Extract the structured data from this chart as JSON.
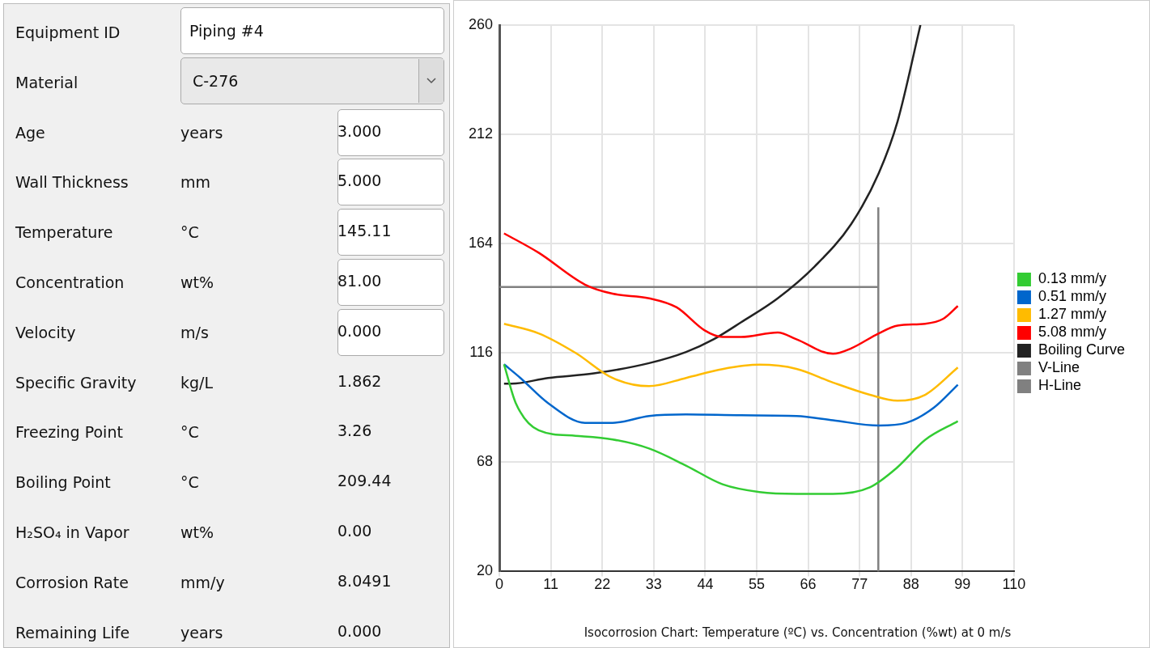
{
  "chart_data": [
    {
      "type": "other",
      "annotations": [
        "Equipment ID",
        "Piping #4",
        "Material",
        "C-276",
        "Age",
        "years",
        "3.000",
        "Wall Thickness",
        "mm",
        "5.000",
        "Temperature",
        "°C",
        "145.11",
        "Concentration",
        "wt%",
        "81.00",
        "Velocity",
        "m/s",
        "0.000",
        "Specific Gravity",
        "kg/L",
        "1.862",
        "Freezing Point",
        "°C",
        "3.26",
        "Boiling Point",
        "°C",
        "209.44",
        "H₂SO₄ in Vapor",
        "wt%",
        "0.00",
        "Corrosion Rate",
        "mm/y",
        "8.0491",
        "Remaining Life",
        "years",
        "0.000"
      ]
    },
    {
      "type": "line",
      "title": "Isocorrosion Chart: Temperature (ºC) vs. Concentration (%wt) at 0 m/s",
      "xlim": [
        0,
        110
      ],
      "xticks": [
        0,
        11,
        22,
        33,
        44,
        55,
        66,
        77,
        88,
        99,
        110
      ],
      "ylim": [
        20,
        260
      ],
      "yticks": [
        20,
        68,
        116,
        164,
        212,
        260
      ],
      "grid": true,
      "legend": "right",
      "series": [
        {
          "name": "0.13 mm/y",
          "color": "#33cc33",
          "x": [
            1,
            3.5,
            8.4,
            16.3,
            24.2,
            32,
            39.9,
            47.7,
            55.6,
            63.5,
            71.3,
            79.2,
            85.1,
            91,
            98
          ],
          "values": [
            111,
            94,
            82,
            79.6,
            78,
            74,
            66.5,
            58.3,
            54.9,
            54.1,
            54.1,
            57,
            65.8,
            77.8,
            86
          ]
        },
        {
          "name": "0.51 mm/y",
          "color": "#0066cc",
          "x": [
            1,
            4.5,
            10.4,
            18.3,
            24.2,
            32,
            39.9,
            51.7,
            63.5,
            71.3,
            81.1,
            87,
            92.9,
            98
          ],
          "values": [
            111,
            105,
            94,
            85.3,
            85.3,
            88.3,
            89,
            88.6,
            88.3,
            86.4,
            84.1,
            85.3,
            92,
            102
          ]
        },
        {
          "name": "1.27 mm/y",
          "color": "#ffbb00",
          "x": [
            1,
            8.4,
            16.3,
            24.2,
            32,
            39.9,
            47.7,
            55.6,
            63.5,
            71.3,
            79.2,
            85.1,
            91,
            98
          ],
          "values": [
            128.8,
            124.6,
            116,
            105,
            101.4,
            105,
            108.9,
            110.8,
            109,
            103,
            97.6,
            95,
            97.6,
            109.6
          ]
        },
        {
          "name": "5.08 mm/y",
          "color": "#ff0000",
          "x": [
            1,
            8.4,
            18.3,
            24.2,
            32,
            37.9,
            43.8,
            47.7,
            51.7,
            59.5,
            63.5,
            71.3,
            75.2,
            81.1,
            85.1,
            91,
            94.9,
            98
          ],
          "values": [
            168.5,
            160,
            146,
            142,
            140,
            136,
            126,
            123,
            123,
            125,
            122,
            115.6,
            118,
            124.6,
            128,
            128.8,
            131,
            136.6
          ]
        },
        {
          "name": "Boiling Curve",
          "color": "#222222",
          "x": [
            1,
            2.6,
            10.4,
            20.2,
            32,
            39.9,
            45.8,
            51.7,
            59.5,
            67.4,
            75.2,
            81.1,
            85.1,
            90
          ],
          "values": [
            102.5,
            102.5,
            105,
            107,
            111.5,
            116.4,
            122,
            129.5,
            140,
            154,
            172.6,
            195,
            217.6,
            260
          ]
        },
        {
          "name": "V-Line",
          "color": "#808080",
          "x": [
            81,
            81
          ],
          "values": [
            20,
            180
          ]
        },
        {
          "name": "H-Line",
          "color": "#808080",
          "x": [
            0,
            81
          ],
          "values": [
            145,
            145
          ]
        }
      ]
    }
  ]
}
